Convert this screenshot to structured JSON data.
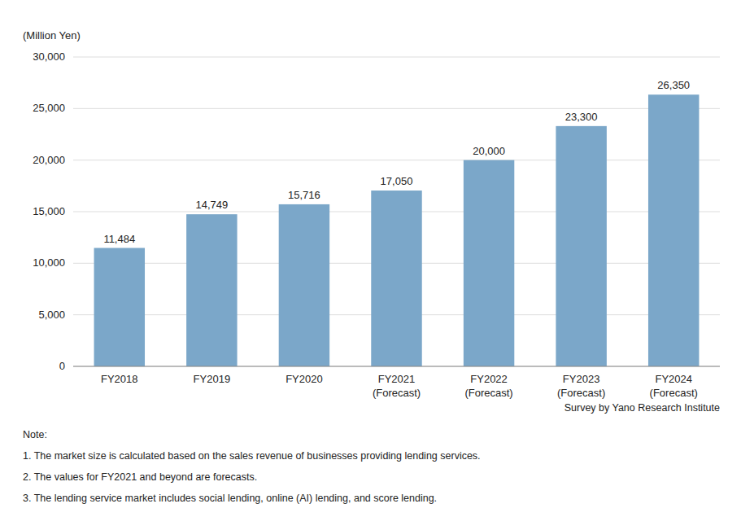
{
  "chart_data": {
    "type": "bar",
    "categories": [
      "FY2018",
      "FY2019",
      "FY2020",
      "FY2021\n(Forecast)",
      "FY2022\n(Forecast)",
      "FY2023\n(Forecast)",
      "FY2024\n(Forecast)"
    ],
    "values": [
      11484,
      14749,
      15716,
      17050,
      20000,
      23300,
      26350
    ],
    "value_labels": [
      "11,484",
      "14,749",
      "15,716",
      "17,050",
      "20,000",
      "23,300",
      "26,350"
    ],
    "data_labels": true,
    "color": "#7BA7C9",
    "ylabel": "(Million Yen)",
    "ylim": [
      0,
      30000
    ],
    "yticks": [
      0,
      {
        "value": 5000,
        "label": "5,000"
      },
      {
        "value": 10000,
        "label": "10,000"
      },
      {
        "value": 15000,
        "label": "15,000"
      },
      {
        "value": 20000,
        "label": "20,000"
      },
      {
        "value": 25000,
        "label": "25,000"
      },
      {
        "value": 30000,
        "label": "30,000"
      }
    ],
    "grid": true,
    "source": "Survey by Yano Research Institute",
    "notes": [
      "Note:",
      "1.  The market size is calculated based on the sales revenue of businesses providing lending services.",
      "2.  The values for FY2021 and beyond are forecasts.",
      "3.  The lending service market includes social lending, online (AI) lending, and score lending."
    ]
  }
}
